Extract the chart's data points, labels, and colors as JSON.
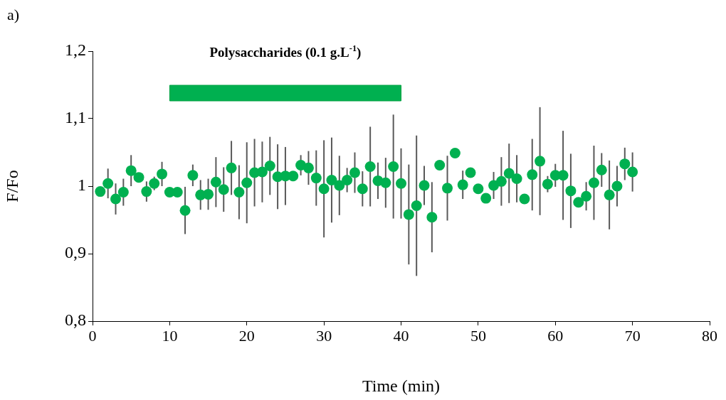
{
  "chart_data": {
    "type": "scatter",
    "xlabel": "Time (min)",
    "ylabel": "F/Fo",
    "annotations": [
      "a)"
    ],
    "x": [
      1,
      2,
      3,
      4,
      5,
      6,
      7,
      8,
      9,
      10,
      11,
      12,
      13,
      14,
      15,
      16,
      17,
      18,
      19,
      20,
      21,
      22,
      23,
      24,
      25,
      26,
      27,
      28,
      29,
      30,
      31,
      32,
      33,
      34,
      35,
      36,
      37,
      38,
      39,
      40,
      41,
      42,
      43,
      44,
      45,
      46,
      47,
      48,
      49,
      50,
      51,
      52,
      53,
      54,
      55,
      56,
      57,
      58,
      59,
      60,
      61,
      62,
      63,
      64,
      65,
      66,
      67,
      68,
      69,
      70
    ],
    "series": [
      {
        "color": "#00b050",
        "values": [
          0.992,
          1.004,
          0.981,
          0.991,
          1.023,
          1.013,
          0.992,
          1.004,
          1.018,
          0.991,
          0.991,
          0.964,
          1.016,
          0.987,
          0.988,
          1.006,
          0.995,
          1.027,
          0.991,
          1.005,
          1.02,
          1.021,
          1.03,
          1.014,
          1.015,
          1.015,
          1.031,
          1.027,
          1.012,
          0.996,
          1.009,
          1.001,
          1.009,
          1.02,
          0.996,
          1.029,
          1.008,
          1.005,
          1.029,
          1.004,
          0.958,
          0.971,
          1.001,
          0.954,
          1.031,
          0.997,
          1.049,
          1.002,
          1.02,
          0.996,
          0.982,
          1.001,
          1.007,
          1.019,
          1.011,
          0.981,
          1.017,
          1.037,
          1.003,
          1.016,
          1.016,
          0.993,
          0.976,
          0.985,
          1.005,
          1.024,
          0.987,
          1.0,
          1.033,
          1.021
        ],
        "errors": [
          null,
          0.022,
          0.023,
          0.02,
          0.023,
          null,
          0.015,
          0.01,
          0.018,
          null,
          null,
          0.035,
          0.016,
          0.022,
          0.023,
          0.037,
          0.033,
          0.04,
          0.04,
          0.06,
          0.05,
          0.045,
          0.043,
          0.048,
          0.043,
          null,
          0.015,
          0.025,
          0.041,
          0.072,
          0.063,
          0.044,
          0.018,
          0.03,
          0.026,
          0.059,
          0.027,
          0.037,
          0.077,
          0.052,
          0.074,
          0.104,
          0.029,
          0.052,
          null,
          0.048,
          null,
          0.021,
          null,
          null,
          null,
          0.02,
          0.036,
          0.044,
          0.035,
          null,
          0.053,
          0.08,
          0.012,
          0.017,
          0.066,
          0.055,
          null,
          0.021,
          0.055,
          0.025,
          0.051,
          0.03,
          0.024,
          0.029
        ]
      }
    ],
    "xlim": [
      0,
      80
    ],
    "xticks": [
      0,
      10,
      20,
      30,
      40,
      50,
      60,
      70,
      80
    ],
    "ylim": [
      0.8,
      1.2
    ],
    "yticks": [
      {
        "value": 0.8,
        "label": "0,8"
      },
      {
        "value": 0.9,
        "label": "0,9"
      },
      1,
      {
        "value": 1.1,
        "label": "1,1"
      },
      {
        "value": 1.2,
        "label": "1,2"
      }
    ],
    "bands": [
      {
        "axis": "x",
        "from": 10,
        "to": 40,
        "label": "Polysaccharides (0.1 g.L$^{-1}$)",
        "color": "#00b050"
      }
    ],
    "grid": false,
    "legend": false,
    "marker": "circle"
  }
}
